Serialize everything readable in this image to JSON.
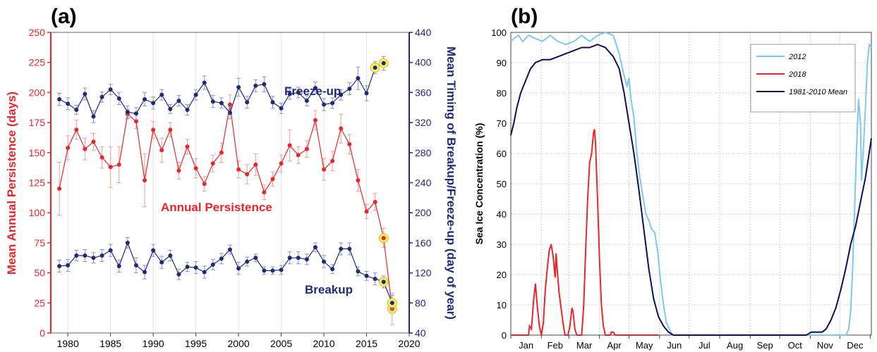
{
  "colors": {
    "red": "#e8262b",
    "navy": "#1f2a7a",
    "light_blue": "#7ec8ee",
    "dark_navy": "#0c0f5a",
    "highlight": "#f6ee6a"
  },
  "chart_data": [
    {
      "panel_label": "(a)",
      "type": "line",
      "xlim": [
        1978,
        2020
      ],
      "xticks": [
        "1980",
        "1985",
        "1990",
        "1995",
        "2000",
        "2005",
        "2010",
        "2015",
        "2020"
      ],
      "y_left": {
        "label": "Mean Annual Persistence (days)",
        "lim": [
          0,
          250
        ],
        "ticks": [
          "0",
          "25",
          "50",
          "75",
          "100",
          "125",
          "150",
          "175",
          "200",
          "225",
          "250"
        ]
      },
      "y_right": {
        "label": "Mean Timing of Breakup/Freeze-up (day of year)",
        "lim": [
          40,
          440
        ],
        "ticks": [
          "40",
          "80",
          "120",
          "160",
          "200",
          "240",
          "280",
          "320",
          "360",
          "400",
          "440"
        ]
      },
      "annotations": {
        "freeze_up": "Freeze-up",
        "persistence": "Annual Persistence",
        "breakup": "Breakup"
      },
      "x": [
        1979,
        1980,
        1981,
        1982,
        1983,
        1984,
        1985,
        1986,
        1987,
        1988,
        1989,
        1990,
        1991,
        1992,
        1993,
        1994,
        1995,
        1996,
        1997,
        1998,
        1999,
        2000,
        2001,
        2002,
        2003,
        2004,
        2005,
        2006,
        2007,
        2008,
        2009,
        2010,
        2011,
        2012,
        2013,
        2014,
        2015,
        2016,
        2017,
        2018
      ],
      "series": [
        {
          "name": "Annual Persistence",
          "axis": "left",
          "values": [
            120,
            154,
            169,
            153,
            159,
            146,
            138,
            140,
            182,
            176,
            127,
            169,
            152,
            169,
            135,
            155,
            137,
            124,
            141,
            150,
            190,
            136,
            132,
            140,
            117,
            128,
            141,
            156,
            148,
            153,
            177,
            136,
            143,
            170,
            157,
            127,
            101,
            109,
            79,
            20
          ],
          "errors": [
            22,
            10,
            8,
            9,
            7,
            9,
            17,
            15,
            4,
            6,
            22,
            7,
            10,
            6,
            7,
            6,
            8,
            6,
            7,
            8,
            8,
            7,
            8,
            9,
            6,
            6,
            7,
            13,
            7,
            7,
            8,
            9,
            8,
            12,
            8,
            9,
            6,
            7,
            8,
            13
          ],
          "highlighted_x": [
            2017,
            2018
          ]
        },
        {
          "name": "Freeze-up",
          "axis": "right",
          "values": [
            351,
            345,
            337,
            358,
            328,
            354,
            364,
            352,
            334,
            332,
            351,
            346,
            357,
            338,
            349,
            337,
            357,
            373,
            348,
            346,
            333,
            367,
            347,
            369,
            371,
            347,
            339,
            358,
            360,
            349,
            366,
            344,
            346,
            357,
            365,
            379,
            359,
            393,
            399,
            null
          ],
          "errors": [
            8,
            8,
            6,
            8,
            8,
            7,
            7,
            8,
            8,
            8,
            9,
            8,
            7,
            6,
            7,
            7,
            7,
            9,
            8,
            7,
            8,
            12,
            8,
            8,
            10,
            8,
            7,
            7,
            7,
            7,
            8,
            8,
            7,
            7,
            8,
            15,
            10,
            8,
            9,
            null
          ],
          "highlighted_x": [
            2016,
            2017
          ]
        },
        {
          "name": "Breakup",
          "axis": "right",
          "values": [
            129,
            130,
            143,
            143,
            140,
            143,
            150,
            129,
            160,
            130,
            121,
            150,
            134,
            143,
            118,
            128,
            127,
            121,
            131,
            139,
            151,
            126,
            135,
            140,
            123,
            123,
            124,
            140,
            140,
            138,
            154,
            135,
            125,
            152,
            152,
            122,
            116,
            112,
            108,
            80
          ],
          "errors": [
            8,
            8,
            7,
            8,
            7,
            8,
            8,
            8,
            7,
            10,
            9,
            8,
            8,
            7,
            7,
            6,
            8,
            8,
            7,
            7,
            6,
            8,
            6,
            5,
            5,
            5,
            6,
            8,
            8,
            7,
            6,
            8,
            6,
            8,
            8,
            6,
            6,
            8,
            8,
            10
          ],
          "highlighted_x": [
            2017,
            2018
          ]
        }
      ]
    },
    {
      "panel_label": "(b)",
      "type": "line",
      "ylabel": "Sea Ice Concentration (%)",
      "xlim": [
        0,
        366
      ],
      "ylim": [
        0,
        100
      ],
      "yticks": [
        "0",
        "10",
        "20",
        "30",
        "40",
        "50",
        "60",
        "70",
        "80",
        "90",
        "100"
      ],
      "month_ticks": [
        "Jan",
        "Feb",
        "Mar",
        "Apr",
        "May",
        "Jun",
        "Jul",
        "Aug",
        "Sep",
        "Oct",
        "Nov",
        "Dec"
      ],
      "legend_position": "top-right",
      "series": [
        {
          "name": "2012",
          "color": "light_blue",
          "points": [
            [
              0,
              97
            ],
            [
              3,
              98
            ],
            [
              8,
              99
            ],
            [
              12,
              97
            ],
            [
              18,
              99
            ],
            [
              25,
              98
            ],
            [
              32,
              97
            ],
            [
              40,
              99
            ],
            [
              48,
              97
            ],
            [
              56,
              96
            ],
            [
              64,
              97
            ],
            [
              72,
              99
            ],
            [
              80,
              97
            ],
            [
              88,
              99
            ],
            [
              96,
              100
            ],
            [
              104,
              99
            ],
            [
              110,
              93
            ],
            [
              114,
              87
            ],
            [
              118,
              82
            ],
            [
              120,
              85
            ],
            [
              122,
              78
            ],
            [
              125,
              72
            ],
            [
              128,
              60
            ],
            [
              131,
              52
            ],
            [
              134,
              46
            ],
            [
              137,
              40
            ],
            [
              140,
              38
            ],
            [
              143,
              35
            ],
            [
              146,
              34
            ],
            [
              149,
              28
            ],
            [
              152,
              18
            ],
            [
              155,
              10
            ],
            [
              158,
              4
            ],
            [
              161,
              2
            ],
            [
              164,
              0
            ],
            [
              170,
              0
            ],
            [
              340,
              0
            ],
            [
              343,
              2
            ],
            [
              345,
              8
            ],
            [
              347,
              22
            ],
            [
              349,
              42
            ],
            [
              351,
              62
            ],
            [
              353,
              78
            ],
            [
              355,
              70
            ],
            [
              356,
              51
            ],
            [
              358,
              62
            ],
            [
              360,
              75
            ],
            [
              362,
              90
            ],
            [
              364,
              96
            ],
            [
              366,
              95
            ]
          ]
        },
        {
          "name": "2018",
          "color": "red",
          "points": [
            [
              0,
              0
            ],
            [
              18,
              0
            ],
            [
              19,
              3
            ],
            [
              21,
              2
            ],
            [
              23,
              11
            ],
            [
              25,
              17
            ],
            [
              27,
              9
            ],
            [
              29,
              3
            ],
            [
              31,
              0
            ],
            [
              33,
              4
            ],
            [
              35,
              15
            ],
            [
              37,
              22
            ],
            [
              39,
              28
            ],
            [
              41,
              30
            ],
            [
              43,
              26
            ],
            [
              45,
              19
            ],
            [
              46,
              27
            ],
            [
              47,
              22
            ],
            [
              49,
              14
            ],
            [
              51,
              9
            ],
            [
              53,
              4
            ],
            [
              55,
              0
            ],
            [
              58,
              0
            ],
            [
              60,
              3
            ],
            [
              62,
              9
            ],
            [
              63,
              8
            ],
            [
              65,
              2
            ],
            [
              67,
              0
            ],
            [
              72,
              0
            ],
            [
              74,
              10
            ],
            [
              76,
              28
            ],
            [
              78,
              45
            ],
            [
              80,
              57
            ],
            [
              82,
              60
            ],
            [
              84,
              67
            ],
            [
              85,
              68
            ],
            [
              86,
              63
            ],
            [
              88,
              45
            ],
            [
              90,
              25
            ],
            [
              92,
              10
            ],
            [
              94,
              3
            ],
            [
              96,
              0
            ],
            [
              101,
              0
            ],
            [
              102,
              1
            ],
            [
              104,
              1
            ],
            [
              106,
              0
            ],
            [
              150,
              0
            ]
          ]
        },
        {
          "name": "1981-2010 Mean",
          "color": "dark_navy",
          "points": [
            [
              0,
              66
            ],
            [
              3,
              70
            ],
            [
              6,
              75
            ],
            [
              10,
              80
            ],
            [
              15,
              84
            ],
            [
              20,
              88
            ],
            [
              25,
              90
            ],
            [
              32,
              91
            ],
            [
              40,
              91
            ],
            [
              48,
              92
            ],
            [
              56,
              93
            ],
            [
              64,
              94
            ],
            [
              72,
              95
            ],
            [
              80,
              95
            ],
            [
              88,
              96
            ],
            [
              96,
              95
            ],
            [
              104,
              92
            ],
            [
              110,
              88
            ],
            [
              115,
              80
            ],
            [
              120,
              70
            ],
            [
              125,
              60
            ],
            [
              130,
              48
            ],
            [
              135,
              35
            ],
            [
              140,
              22
            ],
            [
              145,
              12
            ],
            [
              150,
              6
            ],
            [
              155,
              3
            ],
            [
              160,
              1
            ],
            [
              165,
              0
            ],
            [
              170,
              0
            ],
            [
              300,
              0
            ],
            [
              305,
              1
            ],
            [
              310,
              1
            ],
            [
              316,
              1
            ],
            [
              320,
              2
            ],
            [
              325,
              5
            ],
            [
              330,
              9
            ],
            [
              335,
              15
            ],
            [
              340,
              22
            ],
            [
              345,
              30
            ],
            [
              350,
              36
            ],
            [
              355,
              44
            ],
            [
              360,
              52
            ],
            [
              366,
              65
            ]
          ]
        }
      ]
    }
  ]
}
